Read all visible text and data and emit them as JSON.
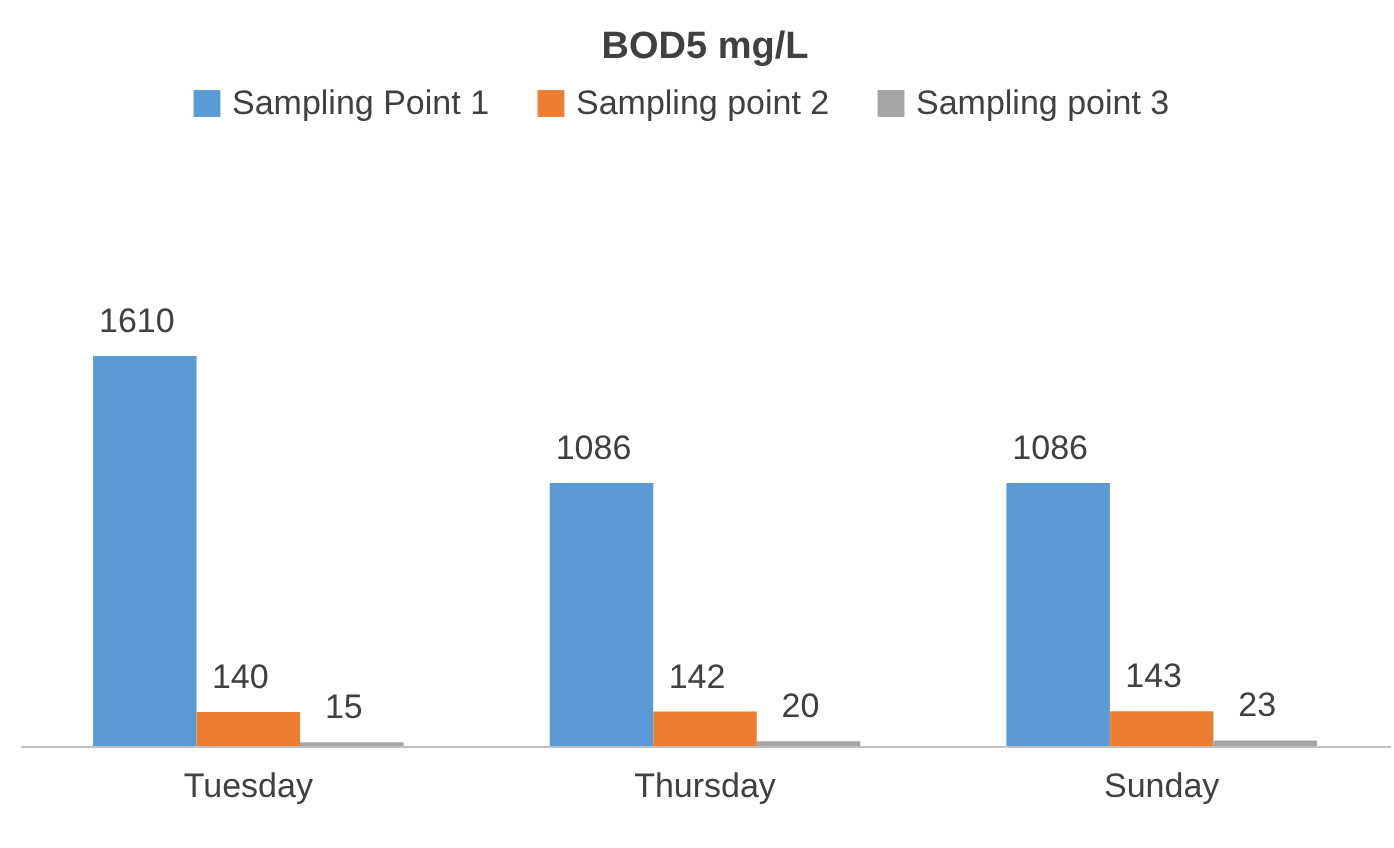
{
  "chart_data": {
    "type": "bar",
    "title": "BOD5 mg/L",
    "categories": [
      "Tuesday",
      "Thursday",
      "Sunday"
    ],
    "series": [
      {
        "name": "Sampling Point 1",
        "color": "#5b9bd5",
        "values": [
          1610,
          1086,
          1086
        ]
      },
      {
        "name": "Sampling point 2",
        "color": "#ed7d31",
        "values": [
          140,
          142,
          143
        ]
      },
      {
        "name": "Sampling point 3",
        "color": "#a5a5a5",
        "values": [
          15,
          20,
          23
        ]
      }
    ],
    "data_labels": true,
    "legend": "top",
    "grid": false
  }
}
